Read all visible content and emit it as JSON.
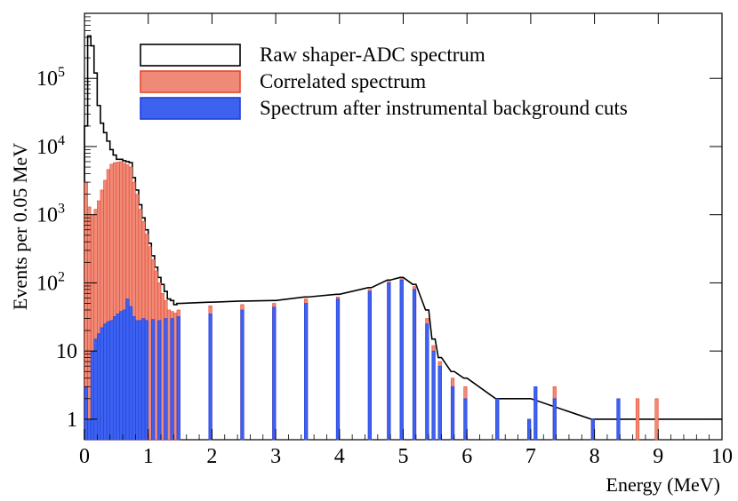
{
  "chart_data": {
    "type": "area",
    "xlabel": "Energy (MeV)",
    "ylabel": "Events per 0.05 MeV",
    "xlim": [
      0,
      10
    ],
    "ylim": [
      0.5,
      900000
    ],
    "log_y": true,
    "x_ticks": [
      "0",
      "1",
      "2",
      "3",
      "4",
      "5",
      "6",
      "7",
      "8",
      "9",
      "10"
    ],
    "y_ticks": [
      {
        "value": 1,
        "label": "1"
      },
      {
        "value": 10,
        "label": "10"
      },
      {
        "value": 100,
        "label": "10",
        "exp": "2"
      },
      {
        "value": 1000,
        "label": "10",
        "exp": "3"
      },
      {
        "value": 10000,
        "label": "10",
        "exp": "4"
      },
      {
        "value": 100000,
        "label": "10",
        "exp": "5"
      }
    ],
    "bin_width": 0.05,
    "legend_position": "top-right",
    "series": [
      {
        "name": "Raw shaper-ADC spectrum",
        "color": "#000000",
        "fill": "none",
        "points": [
          [
            0.05,
            20000
          ],
          [
            0.1,
            420000
          ],
          [
            0.15,
            300000
          ],
          [
            0.2,
            120000
          ],
          [
            0.25,
            40000
          ],
          [
            0.3,
            22000
          ],
          [
            0.35,
            16000
          ],
          [
            0.4,
            12000
          ],
          [
            0.45,
            9000
          ],
          [
            0.5,
            7500
          ],
          [
            0.55,
            6500
          ],
          [
            0.6,
            6500
          ],
          [
            0.65,
            6200
          ],
          [
            0.7,
            6000
          ],
          [
            0.75,
            5800
          ],
          [
            0.8,
            3500
          ],
          [
            0.85,
            2300
          ],
          [
            0.9,
            1400
          ],
          [
            0.95,
            900
          ],
          [
            1.0,
            600
          ],
          [
            1.05,
            380
          ],
          [
            1.1,
            250
          ],
          [
            1.15,
            170
          ],
          [
            1.2,
            120
          ],
          [
            1.25,
            95
          ],
          [
            1.3,
            75
          ],
          [
            1.35,
            58
          ],
          [
            1.4,
            55
          ],
          [
            1.45,
            48
          ],
          [
            1.5,
            50
          ],
          [
            2.0,
            52
          ],
          [
            2.5,
            54
          ],
          [
            3.0,
            55
          ],
          [
            3.5,
            62
          ],
          [
            4.0,
            68
          ],
          [
            4.5,
            85
          ],
          [
            4.8,
            110
          ],
          [
            5.0,
            120
          ],
          [
            5.2,
            95
          ],
          [
            5.4,
            40
          ],
          [
            5.5,
            15
          ],
          [
            5.6,
            8
          ],
          [
            5.8,
            5
          ],
          [
            6.0,
            4
          ],
          [
            6.5,
            2
          ],
          [
            7.0,
            2
          ],
          [
            8.0,
            1
          ],
          [
            9.0,
            1
          ],
          [
            10.0,
            1
          ]
        ]
      },
      {
        "name": "Correlated spectrum",
        "color": "#e8462a",
        "fill": "#f08a78",
        "points": [
          [
            0.05,
            3000
          ],
          [
            0.1,
            1300
          ],
          [
            0.15,
            1000
          ],
          [
            0.2,
            1200
          ],
          [
            0.25,
            1600
          ],
          [
            0.3,
            2300
          ],
          [
            0.35,
            3200
          ],
          [
            0.4,
            4600
          ],
          [
            0.45,
            5500
          ],
          [
            0.5,
            5800
          ],
          [
            0.55,
            5900
          ],
          [
            0.6,
            6000
          ],
          [
            0.65,
            5700
          ],
          [
            0.7,
            5400
          ],
          [
            0.75,
            5000
          ],
          [
            0.8,
            3000
          ],
          [
            0.85,
            2000
          ],
          [
            0.9,
            1200
          ],
          [
            0.95,
            800
          ],
          [
            1.0,
            520
          ],
          [
            1.05,
            340
          ],
          [
            1.1,
            220
          ],
          [
            1.15,
            150
          ],
          [
            1.2,
            100
          ],
          [
            1.25,
            70
          ],
          [
            1.3,
            55
          ],
          [
            1.35,
            40
          ],
          [
            1.4,
            38
          ],
          [
            1.45,
            36
          ],
          [
            1.5,
            40
          ],
          [
            2.0,
            46
          ],
          [
            2.5,
            48
          ],
          [
            3.0,
            50
          ],
          [
            3.5,
            58
          ],
          [
            4.0,
            62
          ],
          [
            4.5,
            80
          ],
          [
            4.8,
            105
          ],
          [
            5.0,
            115
          ],
          [
            5.2,
            88
          ],
          [
            5.4,
            30
          ],
          [
            5.5,
            12
          ],
          [
            5.6,
            7
          ],
          [
            5.8,
            4
          ],
          [
            6.0,
            3
          ],
          [
            6.5,
            2
          ],
          [
            7.0,
            1
          ],
          [
            7.4,
            3
          ],
          [
            8.0,
            1
          ],
          [
            8.7,
            2
          ],
          [
            9.0,
            2
          ]
        ]
      },
      {
        "name": "Spectrum after instrumental background cuts",
        "color": "#1f3fe0",
        "fill": "#3d62f0",
        "points": [
          [
            0.05,
            3
          ],
          [
            0.1,
            1
          ],
          [
            0.15,
            10
          ],
          [
            0.2,
            15
          ],
          [
            0.25,
            18
          ],
          [
            0.3,
            22
          ],
          [
            0.35,
            25
          ],
          [
            0.4,
            27
          ],
          [
            0.45,
            28
          ],
          [
            0.5,
            32
          ],
          [
            0.55,
            35
          ],
          [
            0.6,
            38
          ],
          [
            0.65,
            40
          ],
          [
            0.7,
            58
          ],
          [
            0.75,
            45
          ],
          [
            0.8,
            32
          ],
          [
            0.85,
            28
          ],
          [
            0.9,
            28
          ],
          [
            0.95,
            30
          ],
          [
            1.0,
            28
          ],
          [
            1.1,
            29
          ],
          [
            1.2,
            28
          ],
          [
            1.3,
            30
          ],
          [
            1.4,
            30
          ],
          [
            1.5,
            32
          ],
          [
            2.0,
            35
          ],
          [
            2.5,
            40
          ],
          [
            3.0,
            44
          ],
          [
            3.5,
            50
          ],
          [
            4.0,
            58
          ],
          [
            4.5,
            75
          ],
          [
            4.8,
            100
          ],
          [
            5.0,
            110
          ],
          [
            5.2,
            80
          ],
          [
            5.4,
            25
          ],
          [
            5.5,
            10
          ],
          [
            5.6,
            6
          ],
          [
            5.8,
            3
          ],
          [
            6.0,
            2
          ],
          [
            6.5,
            2
          ],
          [
            7.0,
            1
          ],
          [
            7.1,
            3
          ],
          [
            7.4,
            2
          ],
          [
            8.0,
            1
          ],
          [
            8.4,
            2
          ]
        ]
      }
    ]
  }
}
